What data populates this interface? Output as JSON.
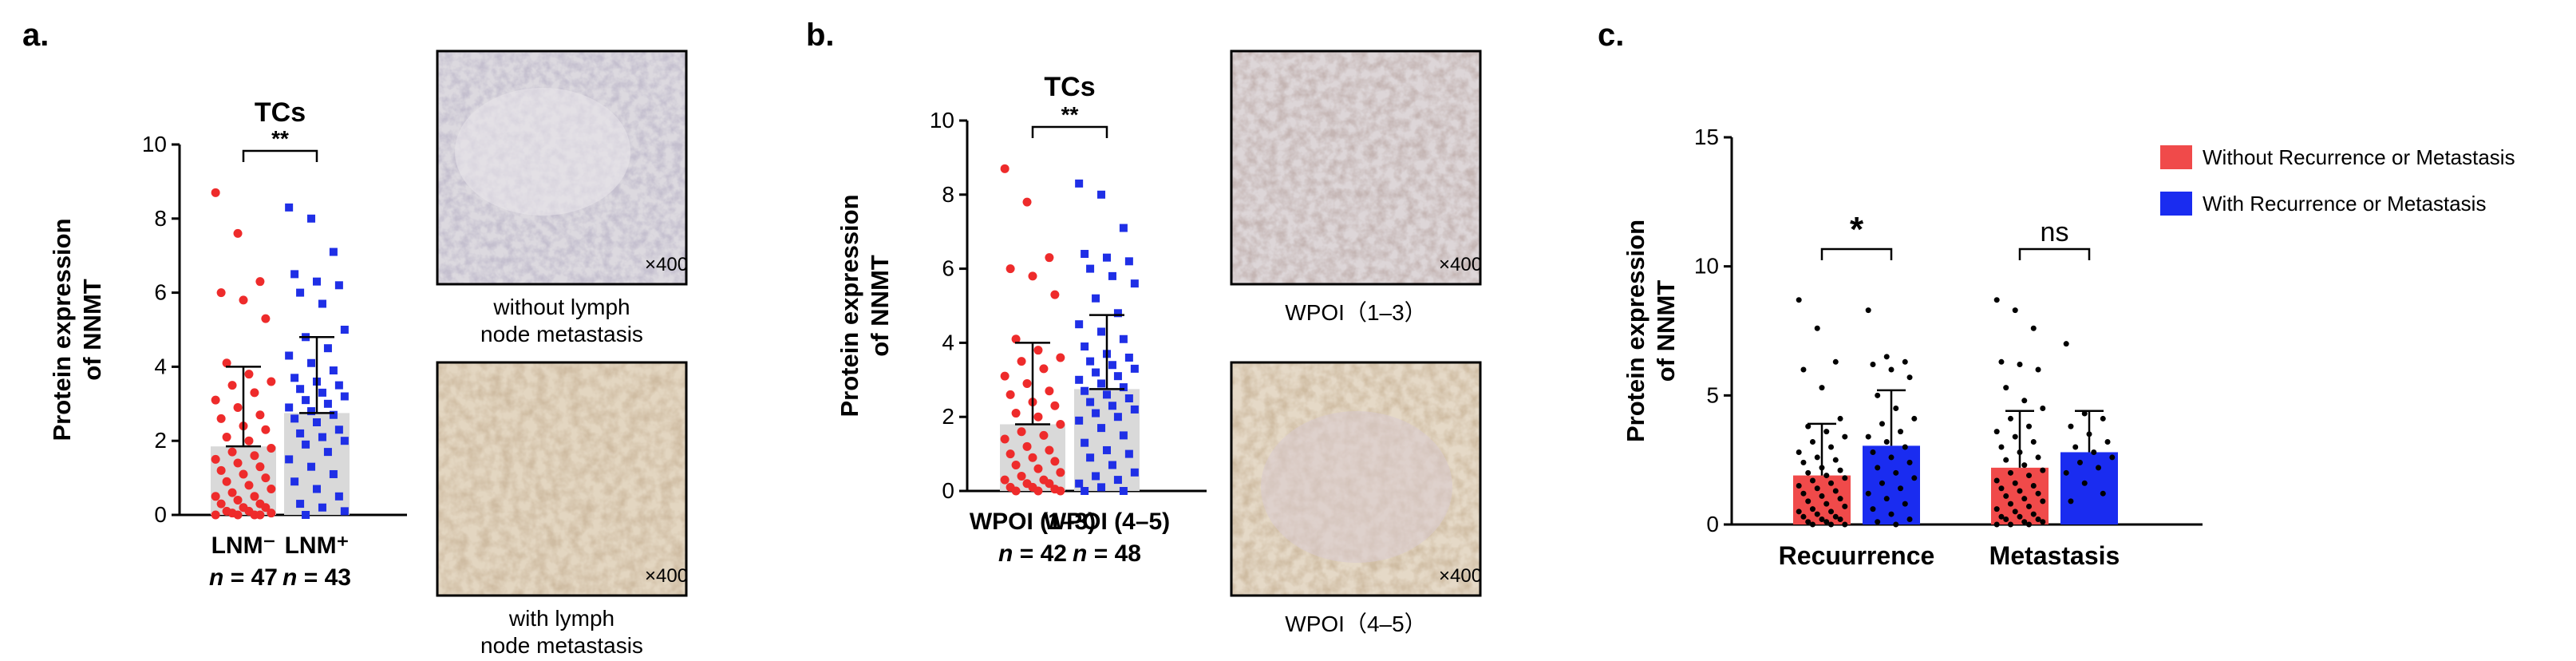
{
  "panels": {
    "a": {
      "letter": "a."
    },
    "b": {
      "letter": "b."
    },
    "c": {
      "letter": "c."
    }
  },
  "images": {
    "a_top": {
      "magnification": "×400",
      "caption_line1": "without lymph",
      "caption_line2": "node metastasis"
    },
    "a_bottom": {
      "magnification": "×400",
      "caption_line1": "with lymph",
      "caption_line2": "node metastasis"
    },
    "b_top": {
      "magnification": "×400",
      "caption": "WPOI（1–3）"
    },
    "b_bottom": {
      "magnification": "×400",
      "caption": "WPOI（4–5）"
    }
  },
  "colors": {
    "red": "#ee2b2b",
    "blue": "#1f2fe6",
    "bar_gray": "#d9d9d9",
    "bar_red": "#f04a4a",
    "bar_blue": "#1a2cf0"
  },
  "chart_data": [
    {
      "type": "bar",
      "panel": "a",
      "title": "TCs",
      "ylabel_line1": "Protein expression",
      "ylabel_line2": "of NNMT",
      "ylim": [
        0,
        10
      ],
      "yticks": [
        "0",
        "2",
        "4",
        "6",
        "8",
        "10"
      ],
      "categories": [
        "LNM⁻",
        "LNM⁺"
      ],
      "n_labels": [
        "n = 47",
        "n = 43"
      ],
      "means": [
        1.85,
        2.75
      ],
      "sd": [
        2.15,
        2.05
      ],
      "significance": "**",
      "points": [
        [
          8.7,
          7.6,
          6.3,
          6.0,
          5.8,
          5.3,
          4.1,
          3.8,
          3.6,
          3.5,
          3.3,
          3.1,
          2.9,
          2.7,
          2.6,
          2.4,
          2.3,
          2.1,
          2.0,
          1.8,
          1.7,
          1.6,
          1.5,
          1.4,
          1.3,
          1.2,
          1.1,
          1.0,
          0.9,
          0.8,
          0.7,
          0.6,
          0.5,
          0.5,
          0.4,
          0.3,
          0.3,
          0.2,
          0.2,
          0.1,
          0.1,
          0.05,
          0.05,
          0.0,
          0.0,
          0.0,
          0.0
        ],
        [
          8.3,
          8.0,
          7.1,
          6.5,
          6.3,
          6.2,
          6.0,
          5.7,
          5.0,
          4.8,
          4.5,
          4.3,
          4.1,
          3.9,
          3.7,
          3.6,
          3.5,
          3.4,
          3.3,
          3.2,
          3.1,
          3.0,
          2.9,
          2.8,
          2.7,
          2.6,
          2.5,
          2.3,
          2.2,
          2.1,
          2.0,
          1.9,
          1.7,
          1.5,
          1.3,
          1.1,
          0.9,
          0.7,
          0.5,
          0.3,
          0.2,
          0.1,
          0.0
        ]
      ]
    },
    {
      "type": "bar",
      "panel": "b",
      "title": "TCs",
      "ylabel_line1": "Protein expression",
      "ylabel_line2": "of NNMT",
      "ylim": [
        0,
        10
      ],
      "yticks": [
        "0",
        "2",
        "4",
        "6",
        "8",
        "10"
      ],
      "categories": [
        "WPOI (1–3)",
        "WPOI (4–5)"
      ],
      "n_labels": [
        "n = 42",
        "n = 48"
      ],
      "means": [
        1.8,
        2.75
      ],
      "sd": [
        2.2,
        2.0
      ],
      "significance": "**",
      "points": [
        [
          8.7,
          7.8,
          6.3,
          6.0,
          5.8,
          5.3,
          4.1,
          3.8,
          3.6,
          3.5,
          3.3,
          3.1,
          2.9,
          2.7,
          2.6,
          2.4,
          2.3,
          2.1,
          2.0,
          1.8,
          1.6,
          1.5,
          1.4,
          1.2,
          1.1,
          1.0,
          0.9,
          0.8,
          0.7,
          0.6,
          0.5,
          0.4,
          0.3,
          0.3,
          0.2,
          0.2,
          0.1,
          0.1,
          0.05,
          0.0,
          0.0,
          0.0
        ],
        [
          8.3,
          8.0,
          7.1,
          6.4,
          6.3,
          6.2,
          6.0,
          5.8,
          5.6,
          5.2,
          4.8,
          4.5,
          4.3,
          4.1,
          3.9,
          3.7,
          3.6,
          3.5,
          3.4,
          3.3,
          3.2,
          3.1,
          3.0,
          2.9,
          2.8,
          2.7,
          2.6,
          2.5,
          2.4,
          2.3,
          2.2,
          2.1,
          2.0,
          1.9,
          1.7,
          1.5,
          1.3,
          1.1,
          1.0,
          0.9,
          0.7,
          0.5,
          0.4,
          0.3,
          0.2,
          0.1,
          0.0,
          0.0
        ]
      ]
    },
    {
      "type": "bar",
      "panel": "c",
      "ylabel_line1": "Protein expression",
      "ylabel_line2": "of NNMT",
      "ylim": [
        0,
        15
      ],
      "yticks": [
        "0",
        "5",
        "10",
        "15"
      ],
      "categories": [
        "Recuurrence",
        "Metastasis"
      ],
      "series": [
        {
          "name": "Without Recurrence or Metastasis",
          "values": [
            1.9,
            2.2
          ],
          "sd": [
            2.0,
            2.2
          ],
          "points": [
            [
              8.7,
              7.6,
              6.3,
              6.0,
              5.3,
              4.1,
              3.8,
              3.6,
              3.4,
              3.2,
              3.0,
              2.8,
              2.6,
              2.5,
              2.4,
              2.2,
              2.1,
              2.0,
              1.9,
              1.8,
              1.7,
              1.6,
              1.5,
              1.4,
              1.3,
              1.2,
              1.1,
              1.0,
              0.9,
              0.8,
              0.7,
              0.6,
              0.5,
              0.5,
              0.4,
              0.3,
              0.3,
              0.2,
              0.2,
              0.1,
              0.1,
              0.0,
              0.0,
              0.0
            ],
            [
              8.7,
              8.3,
              7.6,
              6.3,
              6.2,
              6.0,
              5.3,
              4.8,
              4.5,
              4.1,
              3.8,
              3.6,
              3.4,
              3.2,
              3.0,
              2.8,
              2.6,
              2.5,
              2.3,
              2.1,
              2.0,
              1.9,
              1.7,
              1.6,
              1.5,
              1.4,
              1.3,
              1.2,
              1.1,
              1.0,
              0.9,
              0.8,
              0.7,
              0.6,
              0.5,
              0.4,
              0.3,
              0.3,
              0.2,
              0.2,
              0.1,
              0.1,
              0.0,
              0.0,
              0.0
            ]
          ]
        },
        {
          "name": "With Recurrence or Metastasis",
          "values": [
            3.05,
            2.8
          ],
          "sd": [
            2.15,
            1.6
          ],
          "points": [
            [
              8.3,
              6.5,
              6.3,
              6.2,
              6.0,
              5.7,
              5.0,
              4.5,
              4.1,
              3.9,
              3.6,
              3.4,
              3.2,
              3.0,
              2.8,
              2.6,
              2.4,
              2.2,
              2.0,
              1.8,
              1.6,
              1.4,
              1.2,
              1.0,
              0.8,
              0.6,
              0.4,
              0.2,
              0.1,
              0.0
            ],
            [
              7.0,
              4.3,
              4.1,
              3.8,
              3.5,
              3.2,
              3.0,
              2.8,
              2.6,
              2.4,
              2.2,
              2.0,
              1.6,
              1.2,
              0.9
            ]
          ]
        }
      ],
      "significance": [
        "*",
        "ns"
      ]
    }
  ]
}
